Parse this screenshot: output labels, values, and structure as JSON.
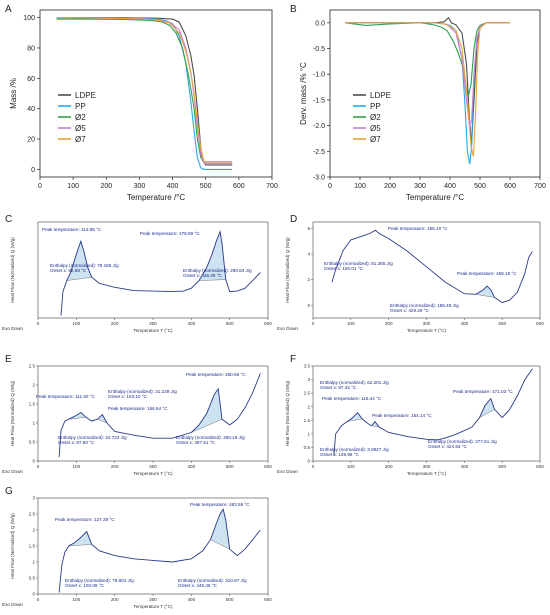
{
  "chart_data": [
    {
      "id": "A",
      "panel_label": "A",
      "type": "line",
      "xlabel": "Temperature /°C",
      "ylabel": "Mass /%",
      "xlim": [
        0,
        700
      ],
      "ylim": [
        -5,
        105
      ],
      "xticks": [
        0,
        100,
        200,
        300,
        400,
        500,
        600,
        700
      ],
      "yticks": [
        0,
        20,
        40,
        60,
        80,
        100
      ],
      "legend_position": "lower-left",
      "series": [
        {
          "name": "LDPE",
          "color": "#4d4d4d",
          "x": [
            50,
            150,
            250,
            300,
            350,
            400,
            420,
            440,
            455,
            465,
            475,
            485,
            490,
            500,
            540,
            580
          ],
          "y": [
            100,
            100,
            100,
            99.8,
            99.6,
            99,
            97,
            88,
            75,
            62,
            40,
            15,
            6,
            3,
            3,
            3
          ]
        },
        {
          "name": "PP",
          "color": "#29a8e0",
          "x": [
            50,
            150,
            250,
            300,
            350,
            380,
            400,
            420,
            440,
            455,
            465,
            475,
            485,
            495,
            540,
            580
          ],
          "y": [
            100,
            100,
            99.8,
            99.6,
            99,
            98,
            96,
            88,
            70,
            45,
            25,
            8,
            1,
            0,
            0,
            0
          ]
        },
        {
          "name": "Ø2",
          "color": "#2e9e4f",
          "x": [
            50,
            150,
            250,
            300,
            340,
            370,
            390,
            410,
            430,
            450,
            465,
            475,
            485,
            495,
            540,
            580
          ],
          "y": [
            99,
            99,
            98.8,
            98.5,
            98,
            97,
            95,
            90,
            80,
            60,
            40,
            20,
            8,
            5,
            5,
            5
          ]
        },
        {
          "name": "Ø5",
          "color": "#c77fd8",
          "x": [
            50,
            150,
            250,
            300,
            350,
            390,
            420,
            440,
            455,
            465,
            475,
            485,
            495,
            540,
            580
          ],
          "y": [
            100,
            99.8,
            99.6,
            99.3,
            98.8,
            97,
            92,
            80,
            64,
            48,
            28,
            10,
            4,
            4,
            4
          ]
        },
        {
          "name": "Ø7",
          "color": "#e8a33a",
          "x": [
            50,
            150,
            250,
            300,
            350,
            390,
            420,
            440,
            455,
            465,
            475,
            485,
            495,
            540,
            580
          ],
          "y": [
            100,
            99.7,
            99.4,
            99.1,
            98.6,
            96.5,
            90,
            78,
            64,
            50,
            32,
            14,
            5,
            5,
            5
          ]
        }
      ]
    },
    {
      "id": "B",
      "panel_label": "B",
      "type": "line",
      "xlabel": "Temperature /°C",
      "ylabel": "Derv. mass /% °C",
      "xlim": [
        0,
        700
      ],
      "ylim": [
        -3.0,
        0.25
      ],
      "xticks": [
        0,
        100,
        200,
        300,
        400,
        500,
        600,
        700
      ],
      "yticks": [
        0.0,
        -0.5,
        -1.0,
        -1.5,
        -2.0,
        -2.5,
        -3.0
      ],
      "legend_position": "lower-right",
      "series": [
        {
          "name": "LDPE",
          "color": "#4d4d4d",
          "x": [
            50,
            200,
            300,
            350,
            380,
            395,
            405,
            420,
            440,
            455,
            465,
            472,
            480,
            490,
            500,
            520,
            600
          ],
          "y": [
            0,
            0,
            0,
            0,
            0.02,
            0.1,
            0,
            -0.04,
            -0.2,
            -0.8,
            -1.9,
            -2.35,
            -1.5,
            -0.4,
            -0.1,
            0,
            0
          ]
        },
        {
          "name": "PP",
          "color": "#29a8e0",
          "x": [
            50,
            200,
            300,
            350,
            380,
            400,
            420,
            440,
            450,
            458,
            466,
            472,
            480,
            490,
            500,
            520,
            600
          ],
          "y": [
            0,
            0,
            0,
            0,
            -0.02,
            -0.05,
            -0.15,
            -0.7,
            -1.6,
            -2.5,
            -2.75,
            -2.4,
            -1.0,
            -0.3,
            -0.08,
            0,
            0
          ]
        },
        {
          "name": "Ø2",
          "color": "#2e9e4f",
          "x": [
            50,
            120,
            200,
            300,
            340,
            370,
            390,
            410,
            425,
            440,
            450,
            460,
            470,
            480,
            490,
            500,
            520,
            600
          ],
          "y": [
            0,
            -0.05,
            -0.02,
            0,
            -0.03,
            -0.08,
            -0.15,
            -0.35,
            -0.55,
            -0.8,
            -1.1,
            -1.45,
            -1.2,
            -0.5,
            -0.15,
            -0.05,
            0,
            0
          ]
        },
        {
          "name": "Ø5",
          "color": "#c77fd8",
          "x": [
            50,
            200,
            300,
            350,
            390,
            420,
            440,
            455,
            465,
            472,
            480,
            490,
            500,
            520,
            600
          ],
          "y": [
            0,
            0,
            0,
            0,
            -0.03,
            -0.2,
            -0.7,
            -1.5,
            -2.0,
            -1.9,
            -1.0,
            -0.3,
            -0.08,
            0,
            0
          ]
        },
        {
          "name": "Ø7",
          "color": "#e8a33a",
          "x": [
            50,
            200,
            300,
            350,
            390,
            420,
            440,
            460,
            470,
            478,
            485,
            492,
            500,
            520,
            600
          ],
          "y": [
            0,
            0,
            0,
            0,
            -0.03,
            -0.15,
            -0.5,
            -1.6,
            -2.4,
            -2.6,
            -1.8,
            -0.6,
            -0.1,
            0,
            0
          ]
        }
      ]
    },
    {
      "id": "C",
      "panel_label": "C",
      "type": "line",
      "xlabel": "Temperature T (°C)",
      "ylabel": "Heat Flow (Normalized) Q (W/g)",
      "exo_label": "Exo Down",
      "xlim": [
        0,
        600
      ],
      "xticks": [
        0,
        100,
        200,
        300,
        400,
        500,
        600
      ],
      "curve": {
        "x": [
          60,
          65,
          75,
          85,
          95,
          105,
          112,
          120,
          130,
          140,
          160,
          200,
          250,
          300,
          350,
          380,
          400,
          420,
          440,
          455,
          465,
          475,
          480,
          490,
          500,
          520,
          540,
          560,
          580
        ],
        "y": [
          0.05,
          0.55,
          0.78,
          0.95,
          1.2,
          1.45,
          1.6,
          1.38,
          1.05,
          0.85,
          0.72,
          0.64,
          0.57,
          0.56,
          0.55,
          0.56,
          0.62,
          0.78,
          1.05,
          1.35,
          1.6,
          1.8,
          1.55,
          0.8,
          0.55,
          0.56,
          0.62,
          0.78,
          0.95
        ]
      },
      "annotations": [
        {
          "text": "Peak temperature: 113.85 °C",
          "pos": [
            42,
            231
          ]
        },
        {
          "text": "Peak temperature: 478.89 °C",
          "pos": [
            140,
            235
          ]
        },
        {
          "text": "Enthalpy (normalized): 79.155 J/g",
          "pos": [
            50,
            267
          ]
        },
        {
          "text": "Onset x: 92.58 °C",
          "pos": [
            50,
            272
          ]
        },
        {
          "text": "Enthalpy (normalized): 290.84 J/g",
          "pos": [
            183,
            272
          ]
        },
        {
          "text": "Onset x: 436.39 °C",
          "pos": [
            183,
            277
          ]
        }
      ]
    },
    {
      "id": "D",
      "panel_label": "D",
      "type": "line",
      "xlabel": "Temperature T (°C)",
      "ylabel": "Heat Flow (Normalized) Q (W/g)",
      "exo_label": "Exo Down",
      "xlim": [
        0,
        600
      ],
      "yticks": [
        0,
        2,
        4,
        6
      ],
      "ylim": [
        -1,
        6.5
      ],
      "xticks": [
        0,
        100,
        200,
        300,
        400,
        500,
        600
      ],
      "curve": {
        "x": [
          50,
          60,
          80,
          100,
          130,
          150,
          165,
          175,
          200,
          250,
          300,
          350,
          400,
          430,
          450,
          460,
          470,
          480,
          500,
          520,
          540,
          560,
          570,
          580
        ],
        "y": [
          1.8,
          2.8,
          4.3,
          5.1,
          5.4,
          5.6,
          5.85,
          5.6,
          5.2,
          4.2,
          3.0,
          1.8,
          0.9,
          0.85,
          1.2,
          1.5,
          1.2,
          0.6,
          0.2,
          0.4,
          1.0,
          2.5,
          3.7,
          4.2
        ]
      },
      "annotations": [
        {
          "text": "Peak temperature: 166.10 °C",
          "pos": [
            388,
            230
          ]
        },
        {
          "text": "Enthalpy (normalized): 81.385 J/g",
          "pos": [
            324,
            265
          ]
        },
        {
          "text": "Onset x: 150.01 °C",
          "pos": [
            324,
            270
          ]
        },
        {
          "text": "Peak temperature: 459.18 °C",
          "pos": [
            457,
            275
          ]
        },
        {
          "text": "Enthalpy (normalized): 185.49 J/g",
          "pos": [
            390,
            307
          ]
        },
        {
          "text": "Onset x: 429.29 °C",
          "pos": [
            390,
            312
          ]
        }
      ]
    },
    {
      "id": "E",
      "panel_label": "E",
      "type": "line",
      "xlabel": "Temperature T (°C)",
      "ylabel": "Heat Flow (Normalized) Q (W/g)",
      "exo_label": "Exo Down",
      "xlim": [
        0,
        600
      ],
      "ylim": [
        0,
        2.5
      ],
      "yticks": [
        0,
        0.5,
        1.0,
        1.5,
        2.0,
        2.5
      ],
      "xticks": [
        0,
        100,
        200,
        300,
        400,
        500,
        600
      ],
      "curve": {
        "x": [
          55,
          60,
          70,
          80,
          90,
          100,
          112,
          125,
          140,
          155,
          168,
          180,
          200,
          250,
          300,
          350,
          400,
          420,
          440,
          460,
          470,
          480,
          500,
          520,
          540,
          560,
          580
        ],
        "y": [
          0.1,
          0.8,
          1.05,
          1.1,
          1.15,
          1.2,
          1.28,
          1.15,
          1.05,
          1.1,
          1.22,
          1.0,
          0.78,
          0.68,
          0.6,
          0.6,
          0.75,
          0.95,
          1.25,
          1.75,
          1.9,
          1.1,
          0.95,
          1.1,
          1.4,
          1.8,
          2.3
        ]
      },
      "annotations": [
        {
          "text": "Peak temperature: 460.68 °C",
          "pos": [
            186,
            376
          ]
        },
        {
          "text": "Enthalpy (normalized): 31.239 J/g",
          "pos": [
            108,
            393
          ]
        },
        {
          "text": "Onset x: 103.10 °C",
          "pos": [
            108,
            398
          ]
        },
        {
          "text": "Peak temperature: 111.60 °C",
          "pos": [
            36,
            398
          ]
        },
        {
          "text": "Peak temperature: 166.64 °C",
          "pos": [
            108,
            410
          ]
        },
        {
          "text": "Enthalpy (normalized): 24.723 J/g",
          "pos": [
            58,
            439
          ]
        },
        {
          "text": "Onset x: 87.50 °C",
          "pos": [
            58,
            444
          ]
        },
        {
          "text": "Enthalpy (normalized): 260.19 J/g",
          "pos": [
            176,
            439
          ]
        },
        {
          "text": "Onset x: 397.51 °C",
          "pos": [
            176,
            444
          ]
        }
      ]
    },
    {
      "id": "F",
      "panel_label": "F",
      "type": "line",
      "xlabel": "Temperature T (°C)",
      "ylabel": "Heat Flow (Normalized) Q (W/g)",
      "exo_label": "Exo Down",
      "xlim": [
        0,
        600
      ],
      "ylim": [
        0,
        3.5
      ],
      "yticks": [
        0,
        0.5,
        1.0,
        1.5,
        2.0,
        2.5,
        3.0,
        3.5
      ],
      "xticks": [
        0,
        100,
        200,
        300,
        400,
        500,
        600
      ],
      "curve": {
        "x": [
          55,
          60,
          75,
          90,
          105,
          118,
          130,
          145,
          155,
          164,
          175,
          200,
          250,
          300,
          330,
          350,
          380,
          420,
          440,
          455,
          470,
          480,
          500,
          520,
          540,
          560,
          580
        ],
        "y": [
          0.2,
          1.0,
          1.3,
          1.45,
          1.6,
          1.78,
          1.55,
          1.38,
          1.3,
          1.45,
          1.25,
          1.05,
          0.9,
          0.8,
          0.78,
          0.85,
          1.0,
          1.25,
          1.6,
          2.05,
          2.3,
          1.9,
          1.6,
          1.9,
          2.4,
          3.0,
          3.4
        ]
      },
      "annotations": [
        {
          "text": "Enthalpy (normalized): 62.201 J/g",
          "pos": [
            320,
            384
          ]
        },
        {
          "text": "Onset x: 87.32 °C",
          "pos": [
            320,
            389
          ]
        },
        {
          "text": "Peak temperature: 471.03 °C",
          "pos": [
            453,
            393
          ]
        },
        {
          "text": "Peak temperature: 118.44 °C",
          "pos": [
            322,
            400
          ]
        },
        {
          "text": "Peak temperature: 164.14 °C",
          "pos": [
            372,
            417
          ]
        },
        {
          "text": "Enthalpy (normalized): 3.0927 J/g",
          "pos": [
            320,
            451
          ]
        },
        {
          "text": "Onset x: 149.98 °C",
          "pos": [
            320,
            456
          ]
        },
        {
          "text": "Enthalpy (normalized): 277.61 J/g",
          "pos": [
            428,
            443
          ]
        },
        {
          "text": "Onset x: 424.83 °C",
          "pos": [
            428,
            448
          ]
        }
      ]
    },
    {
      "id": "G",
      "panel_label": "G",
      "type": "line",
      "xlabel": "Temperature T (°C)",
      "ylabel": "Heat Flow (Normalized) Q (W/g)",
      "exo_label": "Exo Down",
      "xlim": [
        0,
        600
      ],
      "ylim": [
        0,
        3.0
      ],
      "yticks": [
        0,
        0.5,
        1.0,
        1.5,
        2.0,
        2.5,
        3.0
      ],
      "xticks": [
        0,
        100,
        200,
        300,
        400,
        500,
        600
      ],
      "curve": {
        "x": [
          55,
          62,
          70,
          80,
          95,
          110,
          127,
          140,
          160,
          200,
          250,
          300,
          350,
          400,
          430,
          450,
          465,
          475,
          483,
          490,
          500,
          520,
          540,
          560,
          580
        ],
        "y": [
          0.05,
          0.9,
          1.3,
          1.5,
          1.6,
          1.75,
          1.95,
          1.55,
          1.35,
          1.2,
          1.1,
          1.05,
          1.0,
          1.1,
          1.35,
          1.7,
          2.2,
          2.5,
          2.65,
          2.3,
          1.4,
          1.2,
          1.4,
          1.7,
          2.0
        ]
      },
      "annotations": [
        {
          "text": "Peak temperature: 127.39 °C",
          "pos": [
            55,
            521
          ]
        },
        {
          "text": "Peak temperature: 483.58 °C",
          "pos": [
            190,
            506
          ]
        },
        {
          "text": "Enthalpy (normalized): 79.803 J/g",
          "pos": [
            65,
            582
          ]
        },
        {
          "text": "Onset x: 100.08 °C",
          "pos": [
            65,
            587
          ]
        },
        {
          "text": "Enthalpy (normalized): 310.97 J/g",
          "pos": [
            178,
            582
          ]
        },
        {
          "text": "Onset x: 445.45 °C",
          "pos": [
            178,
            587
          ]
        }
      ]
    }
  ]
}
